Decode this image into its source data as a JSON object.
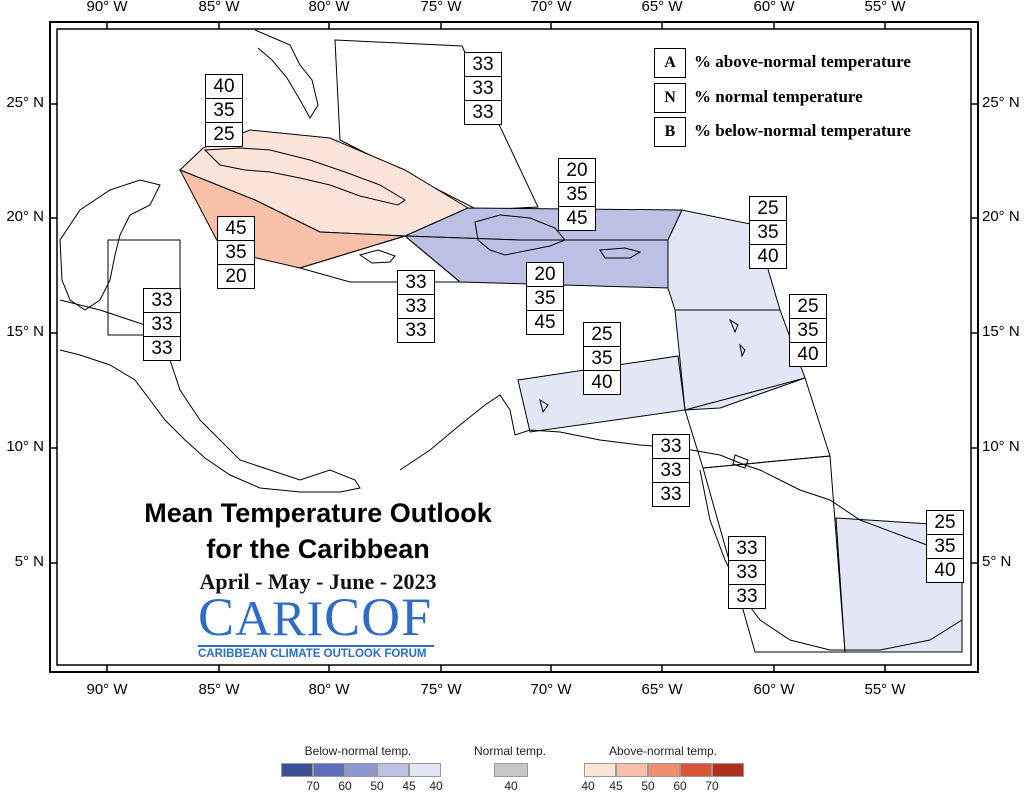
{
  "map": {
    "lon_labels": [
      "90° W",
      "85° W",
      "80° W",
      "75° W",
      "70° W",
      "65° W",
      "60° W",
      "55° W"
    ],
    "lat_labels": [
      "25° N",
      "20° N",
      "15° N",
      "10° N",
      "5° N"
    ]
  },
  "legend": [
    {
      "key": "A",
      "text": "% above-normal temperature"
    },
    {
      "key": "N",
      "text": "% normal temperature"
    },
    {
      "key": "B",
      "text": "% below-normal temperature"
    }
  ],
  "title": {
    "line1": "Mean Temperature Outlook",
    "line2": "for the Caribbean",
    "season": "April - May - June - 2023"
  },
  "logo": {
    "word_part1": "C",
    "word_part2": "ARI",
    "word_part3": "COF",
    "subtitle": "CARIBBEAN CLIMATE OUTLOOK FORUM"
  },
  "regions": [
    {
      "name": "bahamas",
      "values": [
        "33",
        "33",
        "33"
      ],
      "category": "none"
    },
    {
      "name": "cuba",
      "values": [
        "40",
        "35",
        "25"
      ],
      "category": "above-40"
    },
    {
      "name": "cayman",
      "values": [
        "45",
        "35",
        "20"
      ],
      "category": "above-45"
    },
    {
      "name": "jamaica",
      "values": [
        "33",
        "33",
        "33"
      ],
      "category": "none"
    },
    {
      "name": "hispaniola-north",
      "values": [
        "20",
        "35",
        "45"
      ],
      "category": "below-45"
    },
    {
      "name": "hispaniola-south",
      "values": [
        "20",
        "35",
        "45"
      ],
      "category": "below-45"
    },
    {
      "name": "belize",
      "values": [
        "33",
        "33",
        "33"
      ],
      "category": "none"
    },
    {
      "name": "northern-leewards",
      "values": [
        "25",
        "35",
        "40"
      ],
      "category": "below-40"
    },
    {
      "name": "windwards",
      "values": [
        "25",
        "35",
        "40"
      ],
      "category": "below-40"
    },
    {
      "name": "abc-islands",
      "values": [
        "25",
        "35",
        "40"
      ],
      "category": "below-40"
    },
    {
      "name": "trinidad",
      "values": [
        "33",
        "33",
        "33"
      ],
      "category": "none"
    },
    {
      "name": "guyana",
      "values": [
        "33",
        "33",
        "33"
      ],
      "category": "none"
    },
    {
      "name": "suriname-guiana",
      "values": [
        "25",
        "35",
        "40"
      ],
      "category": "below-40"
    }
  ],
  "colors": {
    "below_70": "#3b4f96",
    "below_60": "#5d6db8",
    "below_50": "#8e96d0",
    "below_45": "#bcc0e5",
    "below_40": "#e3e6f5",
    "normal_40": "#c6c6c6",
    "above_40": "#fbe3da",
    "above_45": "#f7c0a9",
    "above_50": "#ee8e6e",
    "above_60": "#d9553a",
    "above_70": "#b03020"
  },
  "colorbar": {
    "below_title": "Below-normal temp.",
    "normal_title": "Normal temp.",
    "above_title": "Above-normal temp.",
    "below_ticks": [
      "70",
      "60",
      "50",
      "45",
      "40"
    ],
    "normal_ticks": [
      "40"
    ],
    "above_ticks": [
      "40",
      "45",
      "50",
      "60",
      "70"
    ]
  }
}
